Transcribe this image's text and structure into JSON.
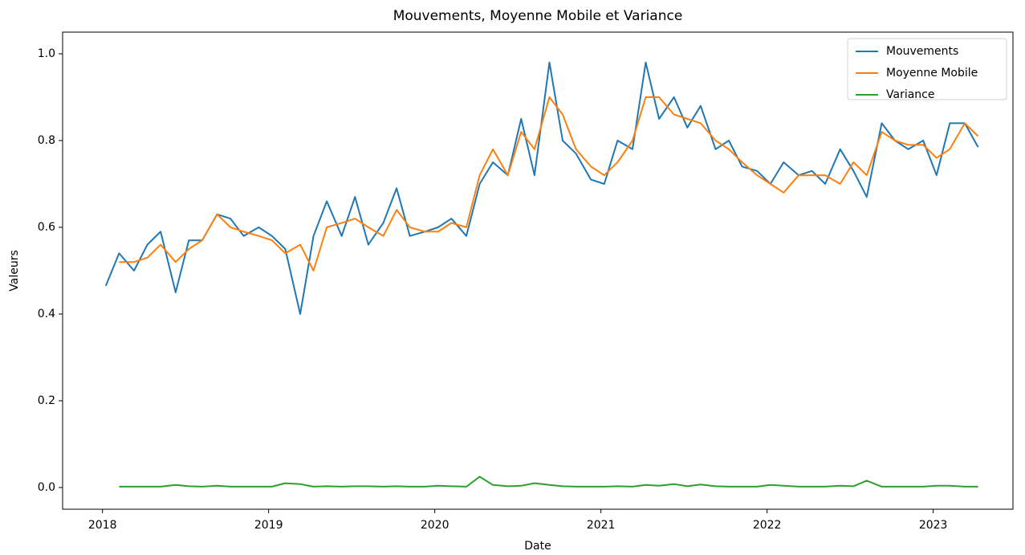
{
  "chart_data": {
    "type": "line",
    "title": "Mouvements, Moyenne Mobile et Variance",
    "xlabel": "Date",
    "ylabel": "Valeurs",
    "x": [
      2018.02,
      2018.1,
      2018.19,
      2018.27,
      2018.35,
      2018.44,
      2018.52,
      2018.6,
      2018.69,
      2018.77,
      2018.85,
      2018.94,
      2019.02,
      2019.1,
      2019.19,
      2019.27,
      2019.35,
      2019.44,
      2019.52,
      2019.6,
      2019.69,
      2019.77,
      2019.85,
      2019.94,
      2020.02,
      2020.1,
      2020.19,
      2020.27,
      2020.35,
      2020.44,
      2020.52,
      2020.6,
      2020.69,
      2020.77,
      2020.85,
      2020.94,
      2021.02,
      2021.1,
      2021.19,
      2021.27,
      2021.35,
      2021.44,
      2021.52,
      2021.6,
      2021.69,
      2021.77,
      2021.85,
      2021.94,
      2022.02,
      2022.1,
      2022.19,
      2022.27,
      2022.35,
      2022.44,
      2022.52,
      2022.6,
      2022.69,
      2022.77,
      2022.85,
      2022.94,
      2023.02,
      2023.1,
      2023.19,
      2023.27
    ],
    "series": [
      {
        "name": "Mouvements",
        "color": "#1f77b4",
        "values": [
          0.465,
          0.54,
          0.5,
          0.56,
          0.59,
          0.45,
          0.57,
          0.57,
          0.63,
          0.62,
          0.58,
          0.6,
          0.58,
          0.55,
          0.4,
          0.58,
          0.66,
          0.58,
          0.67,
          0.56,
          0.61,
          0.69,
          0.58,
          0.59,
          0.6,
          0.62,
          0.58,
          0.7,
          0.75,
          0.72,
          0.85,
          0.72,
          0.98,
          0.8,
          0.77,
          0.71,
          0.7,
          0.8,
          0.78,
          0.98,
          0.85,
          0.9,
          0.83,
          0.88,
          0.78,
          0.8,
          0.74,
          0.73,
          0.7,
          0.75,
          0.72,
          0.73,
          0.7,
          0.78,
          0.73,
          0.67,
          0.84,
          0.8,
          0.78,
          0.8,
          0.72,
          0.84,
          0.84,
          0.785
        ]
      },
      {
        "name": "Moyenne Mobile",
        "color": "#ff7f0e",
        "values": [
          null,
          0.52,
          0.52,
          0.53,
          0.56,
          0.52,
          0.55,
          0.57,
          0.63,
          0.6,
          0.59,
          0.58,
          0.57,
          0.54,
          0.56,
          0.5,
          0.6,
          0.61,
          0.62,
          0.6,
          0.58,
          0.64,
          0.6,
          0.59,
          0.59,
          0.61,
          0.6,
          0.72,
          0.78,
          0.72,
          0.82,
          0.78,
          0.9,
          0.86,
          0.78,
          0.74,
          0.72,
          0.75,
          0.8,
          0.9,
          0.9,
          0.86,
          0.85,
          0.84,
          0.8,
          0.78,
          0.75,
          0.72,
          0.7,
          0.68,
          0.72,
          0.72,
          0.72,
          0.7,
          0.75,
          0.72,
          0.82,
          0.8,
          0.79,
          0.79,
          0.76,
          0.78,
          0.84,
          0.81
        ]
      },
      {
        "name": "Variance",
        "color": "#2ca02c",
        "values": [
          null,
          0.002,
          0.002,
          0.002,
          0.002,
          0.006,
          0.003,
          0.002,
          0.004,
          0.002,
          0.002,
          0.002,
          0.002,
          0.01,
          0.008,
          0.002,
          0.003,
          0.002,
          0.003,
          0.003,
          0.002,
          0.003,
          0.002,
          0.002,
          0.004,
          0.003,
          0.002,
          0.025,
          0.006,
          0.003,
          0.004,
          0.01,
          0.006,
          0.003,
          0.002,
          0.002,
          0.002,
          0.003,
          0.002,
          0.006,
          0.004,
          0.008,
          0.003,
          0.007,
          0.003,
          0.002,
          0.002,
          0.002,
          0.006,
          0.004,
          0.002,
          0.002,
          0.002,
          0.004,
          0.003,
          0.016,
          0.002,
          0.002,
          0.002,
          0.002,
          0.004,
          0.004,
          0.002,
          0.002
        ]
      }
    ],
    "xlim": [
      2017.76,
      2023.48
    ],
    "xticks": [
      2018,
      2019,
      2020,
      2021,
      2022,
      2023
    ],
    "ylim": [
      -0.05,
      1.05
    ],
    "yticks": [
      {
        "value": 0,
        "label": "0.0"
      },
      0.2,
      0.4,
      0.6,
      0.8,
      {
        "value": 1,
        "label": "1.0"
      }
    ],
    "legend": "upper right"
  }
}
